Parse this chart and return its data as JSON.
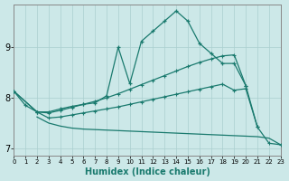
{
  "xlabel": "Humidex (Indice chaleur)",
  "bg_color": "#cce8e8",
  "grid_color": "#aacfcf",
  "line_color": "#1a7a6e",
  "spine_color": "#888888",
  "xlim": [
    0,
    23
  ],
  "ylim": [
    6.85,
    9.85
  ],
  "yticks": [
    7,
    8,
    9
  ],
  "xticks": [
    0,
    1,
    2,
    3,
    4,
    5,
    6,
    7,
    8,
    9,
    10,
    11,
    12,
    13,
    14,
    15,
    16,
    17,
    18,
    19,
    20,
    21,
    22,
    23
  ],
  "line1_x": [
    0,
    1,
    2,
    3,
    4,
    5,
    6,
    7,
    8,
    9,
    10,
    11,
    12,
    13,
    14,
    15,
    16,
    17,
    18,
    19,
    20,
    21
  ],
  "line1_y": [
    8.13,
    7.85,
    7.72,
    7.72,
    7.78,
    7.83,
    7.87,
    7.9,
    8.04,
    9.0,
    8.28,
    9.12,
    9.32,
    9.52,
    9.72,
    9.52,
    9.08,
    8.88,
    8.68,
    8.68,
    8.24,
    7.42
  ],
  "line2_x": [
    0,
    2,
    3,
    4,
    5,
    6,
    7,
    8,
    9,
    10,
    11,
    12,
    13,
    14,
    15,
    16,
    17,
    18,
    19,
    20
  ],
  "line2_y": [
    8.13,
    7.72,
    7.7,
    7.75,
    7.81,
    7.87,
    7.93,
    8.0,
    8.08,
    8.17,
    8.26,
    8.35,
    8.44,
    8.53,
    8.62,
    8.7,
    8.77,
    8.83,
    8.85,
    8.24
  ],
  "line3_x": [
    0,
    2,
    3,
    4,
    5,
    6,
    7,
    8,
    9,
    10,
    11,
    12,
    13,
    14,
    15,
    16,
    17,
    18,
    19,
    20,
    21,
    22,
    23
  ],
  "line3_y": [
    8.13,
    7.72,
    7.6,
    7.62,
    7.66,
    7.7,
    7.74,
    7.78,
    7.82,
    7.87,
    7.92,
    7.97,
    8.02,
    8.07,
    8.12,
    8.17,
    8.22,
    8.27,
    8.15,
    8.18,
    7.42,
    7.1,
    7.07
  ],
  "line4_x": [
    2,
    3,
    4,
    5,
    6,
    7,
    8,
    9,
    10,
    11,
    12,
    13,
    14,
    15,
    16,
    17,
    18,
    19,
    20,
    21,
    22,
    23
  ],
  "line4_y": [
    7.62,
    7.5,
    7.44,
    7.4,
    7.38,
    7.37,
    7.36,
    7.35,
    7.34,
    7.33,
    7.32,
    7.31,
    7.3,
    7.29,
    7.28,
    7.27,
    7.26,
    7.25,
    7.24,
    7.23,
    7.2,
    7.07
  ]
}
